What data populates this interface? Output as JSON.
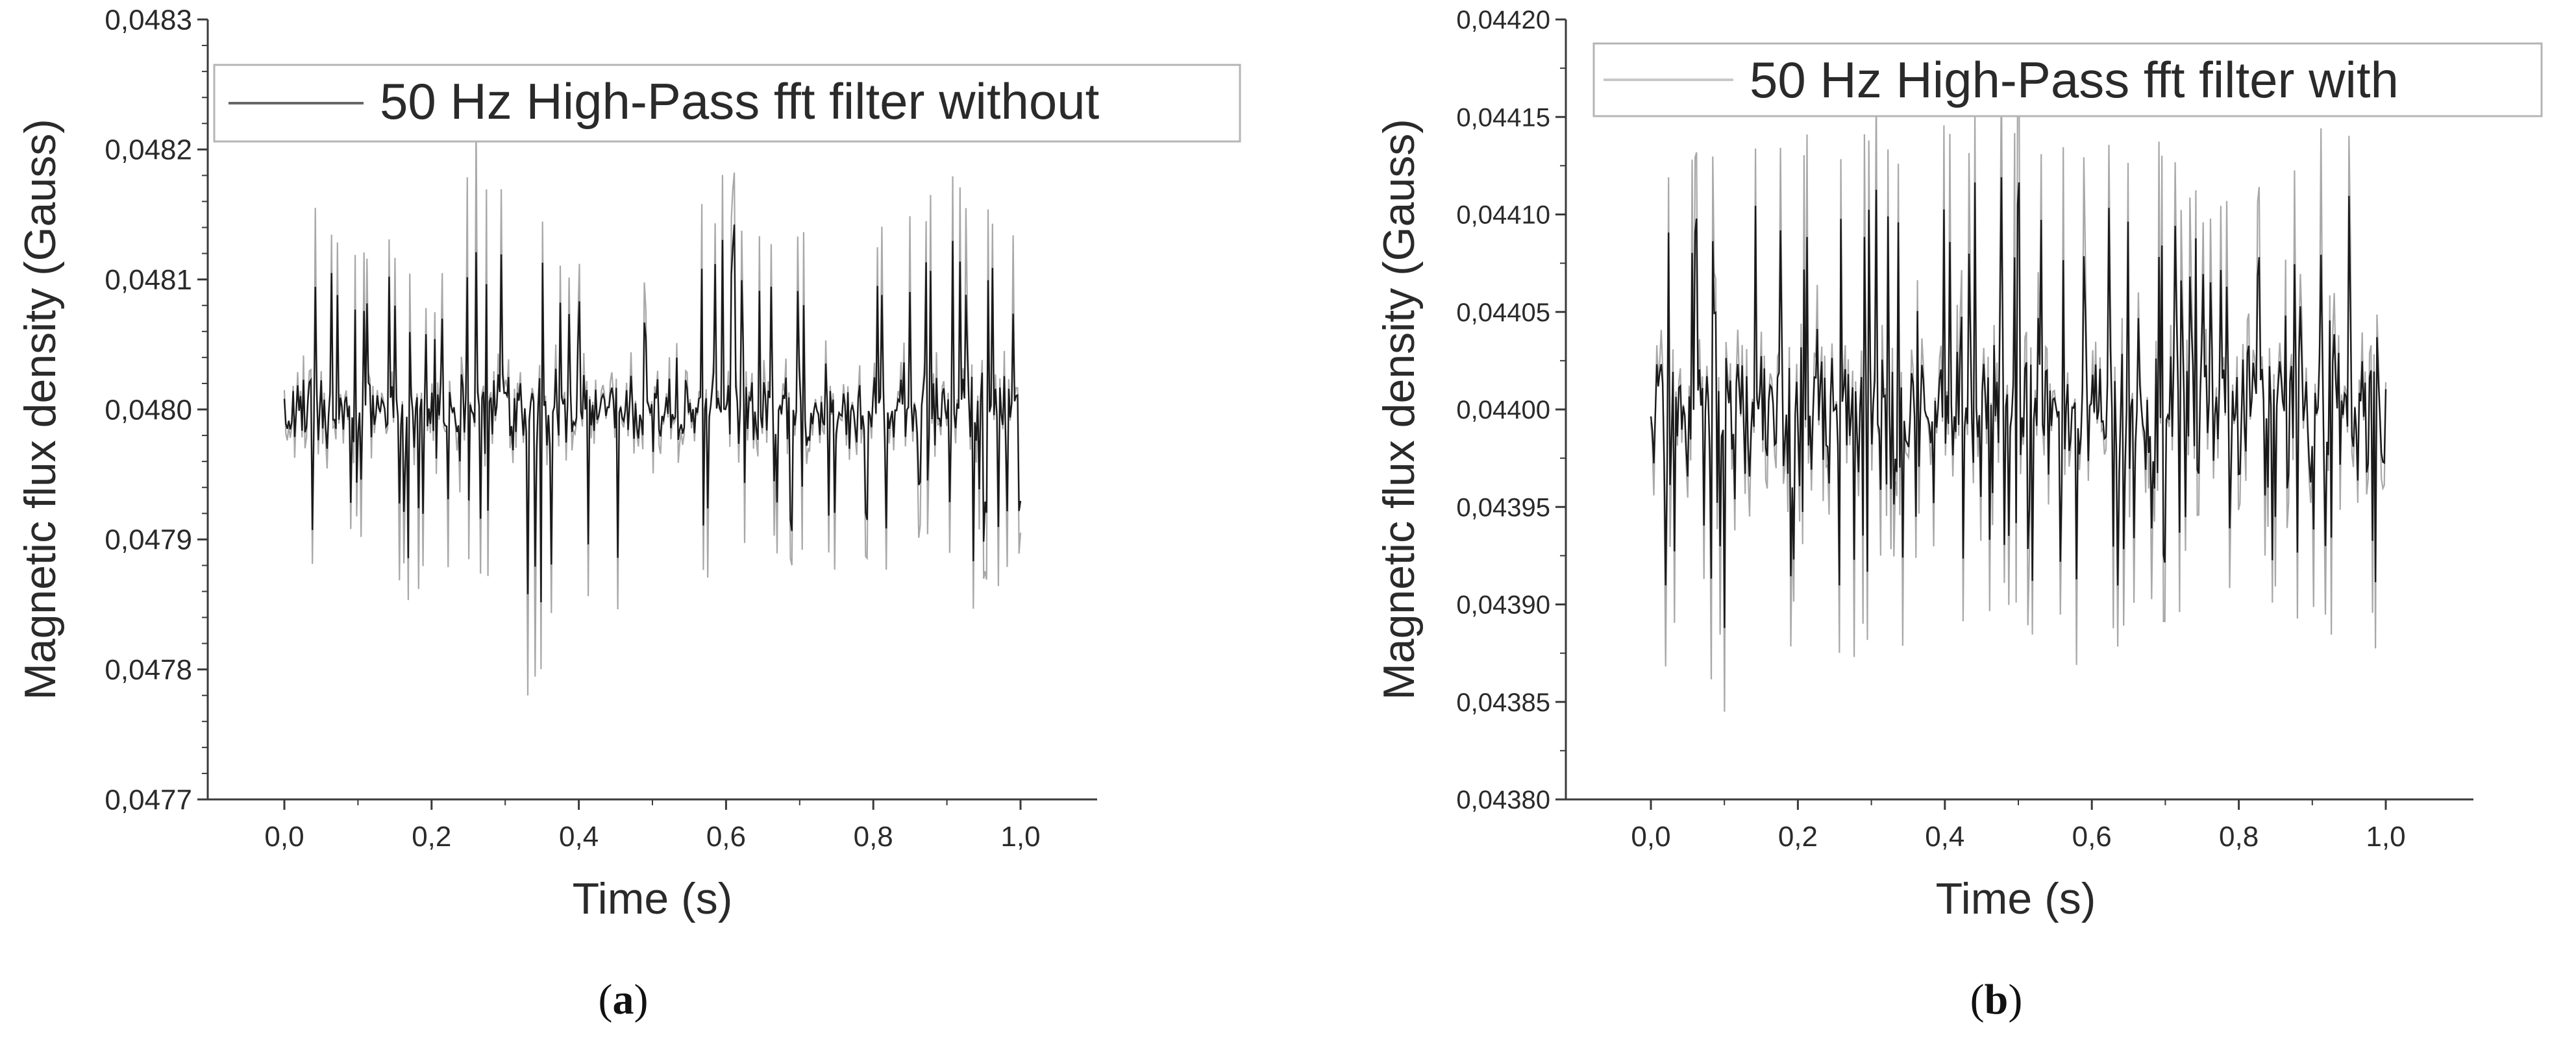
{
  "chart_data": [
    {
      "panel_label": "(a)",
      "type": "line",
      "series_name": "50 Hz High-Pass fft filter without",
      "xlabel": "Time (s)",
      "ylabel": "Magnetic flux density (Gauss)",
      "xlim": [
        -0.1,
        1.1
      ],
      "ylim": [
        0.0477,
        0.0483
      ],
      "x_ticks": [
        0.0,
        0.2,
        0.4,
        0.6,
        0.8,
        1.0
      ],
      "x_tick_labels": [
        "0,0",
        "0,2",
        "0,4",
        "0,6",
        "0,8",
        "1,0"
      ],
      "y_ticks": [
        0.0477,
        0.0478,
        0.0479,
        0.048,
        0.0481,
        0.0482,
        0.0483
      ],
      "y_tick_labels": [
        "0,0477",
        "0,0478",
        "0,0479",
        "0,0480",
        "0,0481",
        "0,0482",
        "0,0483"
      ],
      "grid": false,
      "legend": "top-left",
      "signal": {
        "t_start": 0.0,
        "t_end": 1.0,
        "samples": 500,
        "mean": 0.048,
        "typical_amplitude": 4e-05,
        "observed_max": 0.04822,
        "observed_max_t": 0.26,
        "observed_min": 0.04778,
        "observed_min_t": 0.33
      },
      "envelope_points": [
        {
          "t": 0.0,
          "ymin": 0.04788,
          "ymax": 0.04817
        },
        {
          "t": 0.05,
          "ymin": 0.04784,
          "ymax": 0.0482
        },
        {
          "t": 0.1,
          "ymin": 0.0479,
          "ymax": 0.04812
        },
        {
          "t": 0.15,
          "ymin": 0.04785,
          "ymax": 0.04815
        },
        {
          "t": 0.2,
          "ymin": 0.04784,
          "ymax": 0.04808
        },
        {
          "t": 0.26,
          "ymin": 0.04788,
          "ymax": 0.04822
        },
        {
          "t": 0.33,
          "ymin": 0.04778,
          "ymax": 0.04816
        },
        {
          "t": 0.4,
          "ymin": 0.04785,
          "ymax": 0.04812
        },
        {
          "t": 0.5,
          "ymin": 0.04784,
          "ymax": 0.0481
        },
        {
          "t": 0.55,
          "ymin": 0.04786,
          "ymax": 0.04818
        },
        {
          "t": 0.6,
          "ymin": 0.04788,
          "ymax": 0.04819
        },
        {
          "t": 0.7,
          "ymin": 0.04787,
          "ymax": 0.04814
        },
        {
          "t": 0.8,
          "ymin": 0.04786,
          "ymax": 0.04816
        },
        {
          "t": 0.88,
          "ymin": 0.04789,
          "ymax": 0.04819
        },
        {
          "t": 0.97,
          "ymin": 0.04782,
          "ymax": 0.04816
        },
        {
          "t": 1.0,
          "ymin": 0.04789,
          "ymax": 0.04814
        }
      ]
    },
    {
      "panel_label": "(b)",
      "type": "line",
      "series_name": "50 Hz High-Pass fft filter with",
      "xlabel": "Time (s)",
      "ylabel": "Magnetic flux density (Gauss)",
      "xlim": [
        -0.1,
        1.1
      ],
      "ylim": [
        0.0438,
        0.0442
      ],
      "x_ticks": [
        0.0,
        0.2,
        0.4,
        0.6,
        0.8,
        1.0
      ],
      "x_tick_labels": [
        "0,0",
        "0,2",
        "0,4",
        "0,6",
        "0,8",
        "1,0"
      ],
      "y_ticks": [
        0.0438,
        0.04385,
        0.0439,
        0.04395,
        0.044,
        0.04405,
        0.0441,
        0.04415,
        0.0442
      ],
      "y_tick_labels": [
        "0,04380",
        "0,04385",
        "0,04390",
        "0,04395",
        "0,04400",
        "0,04405",
        "0,04410",
        "0,04415",
        "0,04420"
      ],
      "grid": false,
      "legend": "top-left",
      "signal": {
        "t_start": 0.0,
        "t_end": 1.0,
        "samples": 500,
        "mean": 0.044,
        "typical_amplitude": 6e-05,
        "observed_max": 0.044175,
        "observed_max_t": 0.5,
        "observed_min": 0.043845,
        "observed_min_t": 0.1
      },
      "envelope_points": [
        {
          "t": 0.0,
          "ymin": 0.043852,
          "ymax": 0.0441
        },
        {
          "t": 0.05,
          "ymin": 0.04388,
          "ymax": 0.04414
        },
        {
          "t": 0.1,
          "ymin": 0.043845,
          "ymax": 0.04415
        },
        {
          "t": 0.15,
          "ymin": 0.04387,
          "ymax": 0.044165
        },
        {
          "t": 0.2,
          "ymin": 0.04386,
          "ymax": 0.04414
        },
        {
          "t": 0.3,
          "ymin": 0.04387,
          "ymax": 0.044165
        },
        {
          "t": 0.4,
          "ymin": 0.04389,
          "ymax": 0.044165
        },
        {
          "t": 0.5,
          "ymin": 0.04389,
          "ymax": 0.044175
        },
        {
          "t": 0.6,
          "ymin": 0.04386,
          "ymax": 0.044145
        },
        {
          "t": 0.7,
          "ymin": 0.04389,
          "ymax": 0.04414
        },
        {
          "t": 0.8,
          "ymin": 0.04388,
          "ymax": 0.04411
        },
        {
          "t": 0.9,
          "ymin": 0.04389,
          "ymax": 0.04415
        },
        {
          "t": 1.0,
          "ymin": 0.043855,
          "ymax": 0.04418
        }
      ]
    }
  ],
  "captions": [
    {
      "open": "(",
      "letter": "a",
      "close": ")"
    },
    {
      "open": "(",
      "letter": "b",
      "close": ")"
    }
  ],
  "colors": {
    "background": "#ffffff",
    "axis": "#3a3a3a",
    "text": "#2a2a2a",
    "trace_dark": "#1a1a1a",
    "trace_light": "#a8a8a8",
    "legend_border": "#b5b5b5",
    "legend_line_a": "#666666",
    "legend_line_b": "#c8c8c8"
  }
}
